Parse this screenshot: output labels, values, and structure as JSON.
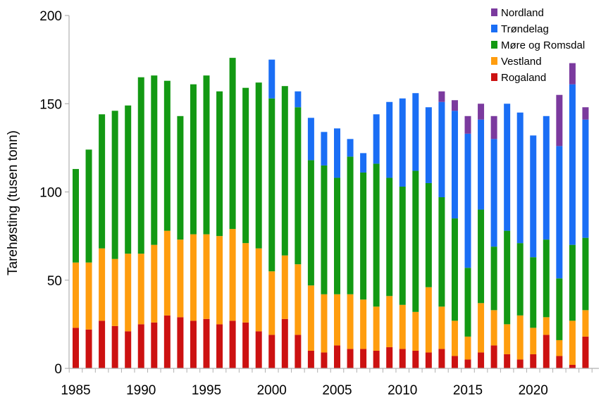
{
  "chart_data": {
    "type": "bar",
    "stacked": true,
    "ylabel": "Tarehøsting  (tusen tonn)",
    "xlabel": "",
    "title": "",
    "ylim": [
      0,
      200
    ],
    "yticks": [
      0,
      50,
      100,
      150,
      200
    ],
    "xticks": [
      1985,
      1990,
      1995,
      2000,
      2005,
      2010,
      2015,
      2020
    ],
    "legend_position": "top-right",
    "grid": false,
    "categories": [
      1985,
      1986,
      1987,
      1988,
      1989,
      1990,
      1991,
      1992,
      1993,
      1994,
      1995,
      1996,
      1997,
      1998,
      1999,
      2000,
      2001,
      2002,
      2003,
      2004,
      2005,
      2006,
      2007,
      2008,
      2009,
      2010,
      2011,
      2012,
      2013,
      2014,
      2015,
      2016,
      2017,
      2018,
      2019,
      2020,
      2021,
      2022,
      2023,
      2024
    ],
    "series": [
      {
        "name": "Rogaland",
        "color": "#cc1111",
        "values": [
          23,
          22,
          27,
          24,
          21,
          25,
          26,
          30,
          29,
          27,
          28,
          25,
          27,
          26,
          21,
          19,
          28,
          19,
          10,
          9,
          13,
          11,
          11,
          10,
          12,
          11,
          10,
          9,
          11,
          7,
          5,
          9,
          13,
          8,
          5,
          8,
          19,
          7,
          2,
          18
        ]
      },
      {
        "name": "Vestland",
        "color": "#ff9d0e",
        "values": [
          37,
          38,
          41,
          38,
          44,
          40,
          44,
          48,
          44,
          49,
          48,
          50,
          52,
          45,
          47,
          36,
          36,
          40,
          37,
          33,
          29,
          31,
          28,
          25,
          29,
          25,
          22,
          37,
          24,
          20,
          13,
          28,
          20,
          17,
          25,
          15,
          10,
          9,
          25,
          15
        ]
      },
      {
        "name": "Møre og Romsdal",
        "color": "#139913",
        "values": [
          53,
          64,
          76,
          84,
          84,
          100,
          96,
          85,
          70,
          85,
          90,
          82,
          97,
          88,
          94,
          98,
          96,
          89,
          71,
          73,
          66,
          78,
          72,
          81,
          67,
          67,
          80,
          59,
          62,
          58,
          39,
          53,
          36,
          53,
          41,
          40,
          44,
          35,
          43,
          41
        ]
      },
      {
        "name": "Trøndelag",
        "color": "#1a6ef5",
        "values": [
          0,
          0,
          0,
          0,
          0,
          0,
          0,
          0,
          0,
          0,
          0,
          0,
          0,
          0,
          0,
          22,
          0,
          9,
          24,
          19,
          28,
          10,
          11,
          28,
          43,
          50,
          44,
          43,
          54,
          61,
          76,
          51,
          61,
          72,
          74,
          69,
          70,
          75,
          91,
          67
        ]
      },
      {
        "name": "Nordland",
        "color": "#7b3a9e",
        "values": [
          0,
          0,
          0,
          0,
          0,
          0,
          0,
          0,
          0,
          0,
          0,
          0,
          0,
          0,
          0,
          0,
          0,
          0,
          0,
          0,
          0,
          0,
          0,
          0,
          0,
          0,
          0,
          0,
          6,
          6,
          10,
          9,
          13,
          0,
          0,
          0,
          0,
          29,
          12,
          7
        ]
      }
    ]
  }
}
